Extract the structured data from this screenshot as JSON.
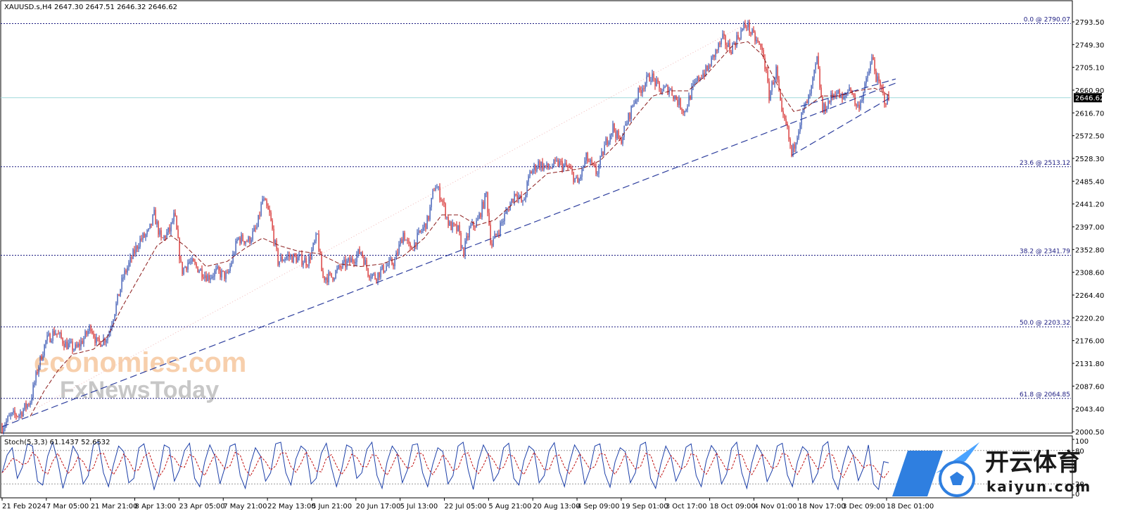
{
  "chart_data": [
    {
      "type": "candlestick",
      "title": "XAUUSD.s,H4  2647.30 2647.51 2646.32 2646.62",
      "symbol": "XAUUSD.s",
      "timeframe": "H4",
      "ohlc": {
        "open": 2647.3,
        "high": 2647.51,
        "low": 2646.32,
        "close": 2646.62
      },
      "current_price_label": "2646.62",
      "current_price": 2646.62,
      "ylim": [
        2000.5,
        2793.5
      ],
      "y_ticks": [
        "2793.50",
        "2749.30",
        "2705.10",
        "2660.90",
        "2616.70",
        "2572.50",
        "2528.30",
        "2485.40",
        "2441.20",
        "2397.00",
        "2352.80",
        "2308.60",
        "2264.40",
        "2220.20",
        "2176.00",
        "2131.80",
        "2087.60",
        "2043.40",
        "2000.50"
      ],
      "x_ticks": [
        "21 Feb 2024",
        "7 Mar 05:00",
        "21 Mar 21:00",
        "8 Apr 13:00",
        "23 Apr 05:00",
        "7 May 21:00",
        "22 May 13:00",
        "5 Jun 21:00",
        "20 Jun 17:00",
        "5 Jul 13:00",
        "22 Jul 05:00",
        "5 Aug 21:00",
        "20 Aug 13:00",
        "4 Sep 09:00",
        "19 Sep 01:00",
        "3 Oct 17:00",
        "18 Oct 09:00",
        "4 Nov 01:00",
        "18 Nov 17:00",
        "3 Dec 09:00",
        "18 Dec 01:00"
      ],
      "fib_levels": [
        {
          "label": "0.0 @ 2790.07",
          "value": 2790.07
        },
        {
          "label": "23.6 @ 2513.12",
          "value": 2513.12
        },
        {
          "label": "38.2 @ 2341.79",
          "value": 2341.79
        },
        {
          "label": "50.0 @ 2203.32",
          "value": 2203.32
        },
        {
          "label": "61.8 @ 2064.85",
          "value": 2064.85
        }
      ],
      "price_path": [
        [
          0,
          2010
        ],
        [
          12,
          2030
        ],
        [
          25,
          2035
        ],
        [
          40,
          2060
        ],
        [
          52,
          2130
        ],
        [
          62,
          2175
        ],
        [
          75,
          2195
        ],
        [
          90,
          2170
        ],
        [
          105,
          2160
        ],
        [
          118,
          2185
        ],
        [
          126,
          2205
        ],
        [
          135,
          2170
        ],
        [
          150,
          2185
        ],
        [
          162,
          2245
        ],
        [
          172,
          2300
        ],
        [
          182,
          2330
        ],
        [
          195,
          2370
        ],
        [
          208,
          2385
        ],
        [
          216,
          2420
        ],
        [
          226,
          2370
        ],
        [
          238,
          2390
        ],
        [
          245,
          2420
        ],
        [
          255,
          2310
        ],
        [
          265,
          2330
        ],
        [
          280,
          2315
        ],
        [
          292,
          2300
        ],
        [
          305,
          2310
        ],
        [
          320,
          2300
        ],
        [
          335,
          2375
        ],
        [
          350,
          2370
        ],
        [
          362,
          2395
        ],
        [
          370,
          2450
        ],
        [
          380,
          2420
        ],
        [
          392,
          2330
        ],
        [
          405,
          2340
        ],
        [
          420,
          2335
        ],
        [
          435,
          2330
        ],
        [
          448,
          2380
        ],
        [
          455,
          2300
        ],
        [
          468,
          2300
        ],
        [
          482,
          2320
        ],
        [
          495,
          2330
        ],
        [
          510,
          2350
        ],
        [
          520,
          2310
        ],
        [
          530,
          2300
        ],
        [
          545,
          2320
        ],
        [
          558,
          2330
        ],
        [
          570,
          2385
        ],
        [
          580,
          2350
        ],
        [
          592,
          2380
        ],
        [
          605,
          2410
        ],
        [
          615,
          2480
        ],
        [
          625,
          2450
        ],
        [
          635,
          2400
        ],
        [
          648,
          2390
        ],
        [
          655,
          2345
        ],
        [
          665,
          2395
        ],
        [
          675,
          2405
        ],
        [
          688,
          2460
        ],
        [
          695,
          2360
        ],
        [
          705,
          2390
        ],
        [
          718,
          2430
        ],
        [
          730,
          2465
        ],
        [
          740,
          2440
        ],
        [
          750,
          2500
        ],
        [
          762,
          2520
        ],
        [
          775,
          2510
        ],
        [
          790,
          2520
        ],
        [
          805,
          2510
        ],
        [
          818,
          2480
        ],
        [
          830,
          2530
        ],
        [
          845,
          2500
        ],
        [
          858,
          2560
        ],
        [
          868,
          2590
        ],
        [
          878,
          2560
        ],
        [
          888,
          2600
        ],
        [
          898,
          2640
        ],
        [
          910,
          2670
        ],
        [
          922,
          2690
        ],
        [
          935,
          2660
        ],
        [
          948,
          2665
        ],
        [
          960,
          2640
        ],
        [
          970,
          2620
        ],
        [
          980,
          2660
        ],
        [
          992,
          2690
        ],
        [
          1002,
          2700
        ],
        [
          1012,
          2730
        ],
        [
          1024,
          2760
        ],
        [
          1035,
          2740
        ],
        [
          1048,
          2770
        ],
        [
          1058,
          2790
        ],
        [
          1065,
          2770
        ],
        [
          1075,
          2750
        ],
        [
          1082,
          2730
        ],
        [
          1090,
          2650
        ],
        [
          1100,
          2700
        ],
        [
          1108,
          2610
        ],
        [
          1115,
          2590
        ],
        [
          1122,
          2535
        ],
        [
          1130,
          2580
        ],
        [
          1138,
          2620
        ],
        [
          1148,
          2650
        ],
        [
          1158,
          2720
        ],
        [
          1166,
          2620
        ],
        [
          1175,
          2640
        ],
        [
          1185,
          2660
        ],
        [
          1195,
          2640
        ],
        [
          1205,
          2670
        ],
        [
          1215,
          2625
        ],
        [
          1225,
          2660
        ],
        [
          1232,
          2700
        ],
        [
          1237,
          2725
        ],
        [
          1243,
          2680
        ],
        [
          1250,
          2660
        ],
        [
          1255,
          2640
        ],
        [
          1260,
          2645
        ]
      ],
      "ma_path": [
        [
          40,
          2030
        ],
        [
          60,
          2080
        ],
        [
          80,
          2120
        ],
        [
          100,
          2150
        ],
        [
          130,
          2160
        ],
        [
          150,
          2185
        ],
        [
          170,
          2240
        ],
        [
          195,
          2300
        ],
        [
          220,
          2360
        ],
        [
          240,
          2380
        ],
        [
          260,
          2360
        ],
        [
          290,
          2320
        ],
        [
          320,
          2330
        ],
        [
          345,
          2355
        ],
        [
          370,
          2375
        ],
        [
          395,
          2360
        ],
        [
          420,
          2350
        ],
        [
          450,
          2345
        ],
        [
          480,
          2325
        ],
        [
          510,
          2320
        ],
        [
          540,
          2325
        ],
        [
          570,
          2340
        ],
        [
          600,
          2375
        ],
        [
          625,
          2420
        ],
        [
          650,
          2420
        ],
        [
          675,
          2400
        ],
        [
          700,
          2410
        ],
        [
          725,
          2440
        ],
        [
          750,
          2470
        ],
        [
          775,
          2500
        ],
        [
          800,
          2505
        ],
        [
          825,
          2510
        ],
        [
          850,
          2525
        ],
        [
          875,
          2560
        ],
        [
          900,
          2610
        ],
        [
          925,
          2650
        ],
        [
          950,
          2660
        ],
        [
          975,
          2660
        ],
        [
          1000,
          2690
        ],
        [
          1020,
          2720
        ],
        [
          1040,
          2750
        ],
        [
          1060,
          2755
        ],
        [
          1080,
          2730
        ],
        [
          1095,
          2690
        ],
        [
          1110,
          2650
        ],
        [
          1125,
          2620
        ],
        [
          1140,
          2625
        ],
        [
          1165,
          2650
        ],
        [
          1190,
          2650
        ],
        [
          1215,
          2660
        ],
        [
          1240,
          2665
        ],
        [
          1262,
          2650
        ]
      ],
      "trendlines": [
        {
          "from": [
            0,
            2010
          ],
          "to": [
            1058,
            2790
          ],
          "style": "dotted"
        },
        {
          "from": [
            0,
            2010
          ],
          "to": [
            1270,
            2675
          ],
          "style": "dashed"
        },
        {
          "from": [
            1122,
            2535
          ],
          "to": [
            1260,
            2645
          ],
          "style": "dashed"
        },
        {
          "from": [
            1135,
            2630
          ],
          "to": [
            1270,
            2683
          ],
          "style": "dashed"
        }
      ]
    },
    {
      "type": "line",
      "title": "Stoch(5,3,3) 61.1437 52.6532",
      "ylim": [
        0,
        100
      ],
      "y_ticks": [
        "100",
        "80",
        "20",
        "0"
      ],
      "levels": [
        80,
        20
      ],
      "series": [
        {
          "values": [
            40,
            72,
            85,
            30,
            50,
            92,
            88,
            25,
            18,
            70,
            95,
            60,
            12,
            45,
            88,
            72,
            20,
            35,
            90,
            96,
            40,
            15,
            55,
            88,
            78,
            22,
            30,
            85,
            92,
            50,
            10,
            40,
            90,
            85,
            25,
            45,
            80,
            93,
            30,
            15,
            60,
            90,
            70,
            20,
            50,
            88,
            92,
            35,
            12,
            55,
            85,
            70,
            25,
            40,
            92,
            95,
            40,
            18,
            65,
            88,
            80,
            20,
            30,
            75,
            93,
            50,
            15,
            45,
            90,
            85,
            30,
            40,
            82,
            95,
            35,
            12,
            60,
            88,
            75,
            22,
            45,
            90,
            92,
            40,
            15,
            55,
            85,
            78,
            20,
            35,
            88,
            95,
            45,
            10,
            60,
            90,
            72,
            25,
            40,
            85,
            93,
            30,
            18,
            62,
            88,
            80,
            22,
            35,
            80,
            94,
            42,
            15,
            58,
            90,
            75,
            20,
            45,
            88,
            92,
            38,
            14,
            60,
            85,
            78,
            22,
            40,
            90,
            95,
            30,
            12,
            55,
            88,
            70,
            25,
            45,
            86,
            92,
            35,
            15,
            62,
            89,
            76,
            20,
            38,
            84,
            95,
            40,
            12,
            58,
            90,
            74,
            24,
            44,
            88,
            93,
            36,
            15,
            60,
            87,
            78,
            22,
            40,
            88,
            96,
            30,
            10,
            55,
            88,
            72,
            26,
            48,
            90,
            20,
            10,
            60,
            58
          ]
        }
      ]
    }
  ],
  "watermark": {
    "line1": "economies.com",
    "line2": "FxNewsToday"
  },
  "logo": {
    "cn": "开云体育",
    "url": "kaiyun.com"
  }
}
